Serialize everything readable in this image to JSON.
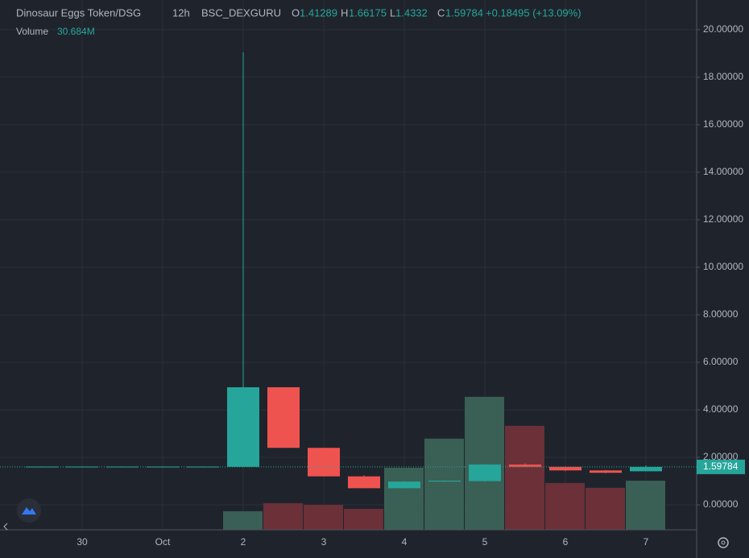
{
  "chart_data": {
    "type": "candlestick",
    "title": "Dinosaur Eggs Token/DSG",
    "interval": "12h",
    "source": "BSC_DEXGURU",
    "ohlc_letters": [
      "O",
      "H",
      "L",
      "C"
    ],
    "change_label": "+0.18495 (+13.09%)",
    "volume_title": "Volume",
    "last_volume_label": "30.684M",
    "x": [
      0.5,
      1,
      1.5,
      2,
      2.5,
      3,
      3.5,
      4,
      4.5,
      5,
      5.5,
      6,
      6.5,
      7,
      7.5,
      8
    ],
    "open": [
      1.6,
      1.6,
      1.6,
      1.6,
      1.6,
      1.6,
      4.95,
      2.4,
      1.2,
      0.7,
      0.98,
      1.0,
      1.7,
      1.6,
      1.45,
      1.41289
    ],
    "high": [
      1.62,
      1.62,
      1.62,
      1.62,
      1.62,
      19.05,
      4.95,
      2.4,
      1.25,
      1.0,
      1.03,
      1.72,
      1.75,
      1.62,
      1.47,
      1.66175
    ],
    "low": [
      1.59,
      1.59,
      1.59,
      1.59,
      1.59,
      1.6,
      2.4,
      1.2,
      0.7,
      0.7,
      0.97,
      0.98,
      1.58,
      1.42,
      1.33,
      1.4332
    ],
    "close": [
      1.61,
      1.61,
      1.61,
      1.61,
      1.61,
      4.95,
      2.4,
      1.2,
      0.7,
      0.98,
      1.02,
      1.7,
      1.6,
      1.45,
      1.35,
      1.59784
    ],
    "volume": [
      0.1,
      0.1,
      0.1,
      0.1,
      0.1,
      11.6,
      16.6,
      15.6,
      13.1,
      38.7,
      56.9,
      83.0,
      64.9,
      29.2,
      26.2,
      30.684
    ],
    "volume_lim": [
      0,
      200
    ],
    "up_color": "#26a69a",
    "down_color": "#ef5350",
    "volume_up_color": "#3a5f55",
    "volume_down_color": "#6b3038",
    "xlim": [
      -0.02,
      8.63
    ],
    "xticks": [
      {
        "value": 1,
        "label": "30"
      },
      {
        "value": 2,
        "label": "Oct"
      },
      {
        "value": 3,
        "label": "2"
      },
      {
        "value": 4,
        "label": "3"
      },
      {
        "value": 5,
        "label": "4"
      },
      {
        "value": 6,
        "label": "5"
      },
      {
        "value": 7,
        "label": "6"
      },
      {
        "value": 8,
        "label": "7"
      }
    ],
    "ylim": [
      -1.05,
      21.25
    ],
    "yticks": [
      {
        "value": 0,
        "label": "0.00000"
      },
      {
        "value": 2,
        "label": "2.00000"
      },
      {
        "value": 4,
        "label": "4.00000"
      },
      {
        "value": 6,
        "label": "6.00000"
      },
      {
        "value": 8,
        "label": "8.00000"
      },
      {
        "value": 10,
        "label": "10.00000"
      },
      {
        "value": 12,
        "label": "12.00000"
      },
      {
        "value": 14,
        "label": "14.00000"
      },
      {
        "value": 16,
        "label": "16.00000"
      },
      {
        "value": 18,
        "label": "18.00000"
      },
      {
        "value": 20,
        "label": "20.00000"
      }
    ],
    "grid": true
  }
}
